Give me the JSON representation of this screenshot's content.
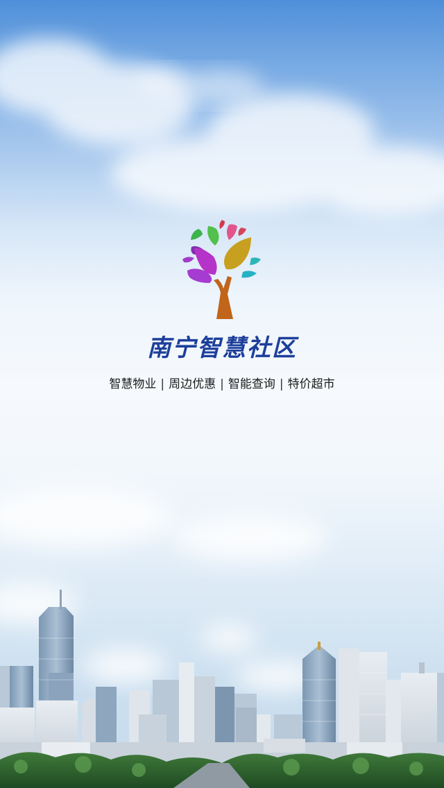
{
  "app": {
    "title": "南宁智慧社区",
    "logo_icon": "colorful-tree-icon"
  },
  "taglines": [
    {
      "label": "智慧物业"
    },
    {
      "label": "周边优惠"
    },
    {
      "label": "智能查询"
    },
    {
      "label": "特价超市"
    }
  ],
  "separator": "|",
  "colors": {
    "title": "#1d3f9b",
    "sky_top": "#4f8fd9",
    "trunk": "#c0651a"
  },
  "background": {
    "scene_icon": "city-skyline-illustration"
  }
}
